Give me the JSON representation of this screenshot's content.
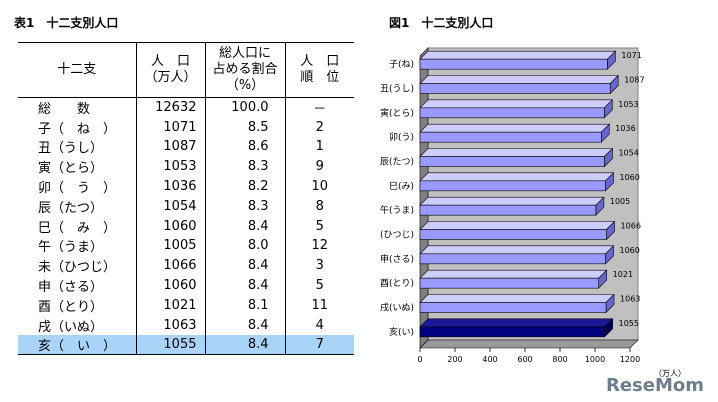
{
  "table": {
    "title": "表1　十二支別人口",
    "headers": {
      "zodiac": [
        "十二支"
      ],
      "population": [
        "人　口",
        "（万人）"
      ],
      "share": [
        "総人口に",
        "占める割合",
        "（%）"
      ],
      "rank": [
        "人　口",
        "順　位"
      ]
    },
    "rows": [
      {
        "name": "総　　数",
        "population": "12632",
        "share": "100.0",
        "rank": "－"
      },
      {
        "name": "子（　ね　）",
        "population": "1071",
        "share": "8.5",
        "rank": "2"
      },
      {
        "name": "丑（うし）",
        "population": "1087",
        "share": "8.6",
        "rank": "1"
      },
      {
        "name": "寅（とら）",
        "population": "1053",
        "share": "8.3",
        "rank": "9"
      },
      {
        "name": "卯（　う　）",
        "population": "1036",
        "share": "8.2",
        "rank": "10"
      },
      {
        "name": "辰（たつ）",
        "population": "1054",
        "share": "8.3",
        "rank": "8"
      },
      {
        "name": "巳（　み　）",
        "population": "1060",
        "share": "8.4",
        "rank": "5"
      },
      {
        "name": "午（うま）",
        "population": "1005",
        "share": "8.0",
        "rank": "12"
      },
      {
        "name": "未（ひつじ）",
        "population": "1066",
        "share": "8.4",
        "rank": "3"
      },
      {
        "name": "申（さる）",
        "population": "1060",
        "share": "8.4",
        "rank": "5"
      },
      {
        "name": "酉（とり）",
        "population": "1021",
        "share": "8.1",
        "rank": "11"
      },
      {
        "name": "戌（いぬ）",
        "population": "1063",
        "share": "8.4",
        "rank": "4"
      },
      {
        "name": "亥（　い　）",
        "population": "1055",
        "share": "8.4",
        "rank": "7"
      }
    ]
  },
  "chart_data": {
    "type": "bar",
    "orientation": "horizontal",
    "title": "図1　十二支別人口",
    "categories": [
      "子(ね)",
      "丑(うし)",
      "寅(とら)",
      "卯(う)",
      "辰(たつ)",
      "巳(み)",
      "午(うま)",
      "未(ひつじ)",
      "申(さる)",
      "酉(とり)",
      "戌(いぬ)",
      "亥(い)"
    ],
    "values": [
      1071,
      1087,
      1053,
      1036,
      1054,
      1060,
      1005,
      1066,
      1060,
      1021,
      1063,
      1055
    ],
    "data_labels": [
      "1071",
      "1087",
      "1053",
      "1036",
      "1054",
      "1060",
      "1005",
      "1066",
      "1060",
      "1021",
      "1063",
      "1055"
    ],
    "x_ticks": [
      "0",
      "200",
      "400",
      "600",
      "800",
      "1000",
      "1200"
    ],
    "xlim": [
      0,
      1200
    ],
    "xlabel": "（万人）",
    "bar_color": "#9999ff",
    "highlight_color": "#000080",
    "highlight_index": 11,
    "grid": false
  },
  "watermark": "ReseMom"
}
